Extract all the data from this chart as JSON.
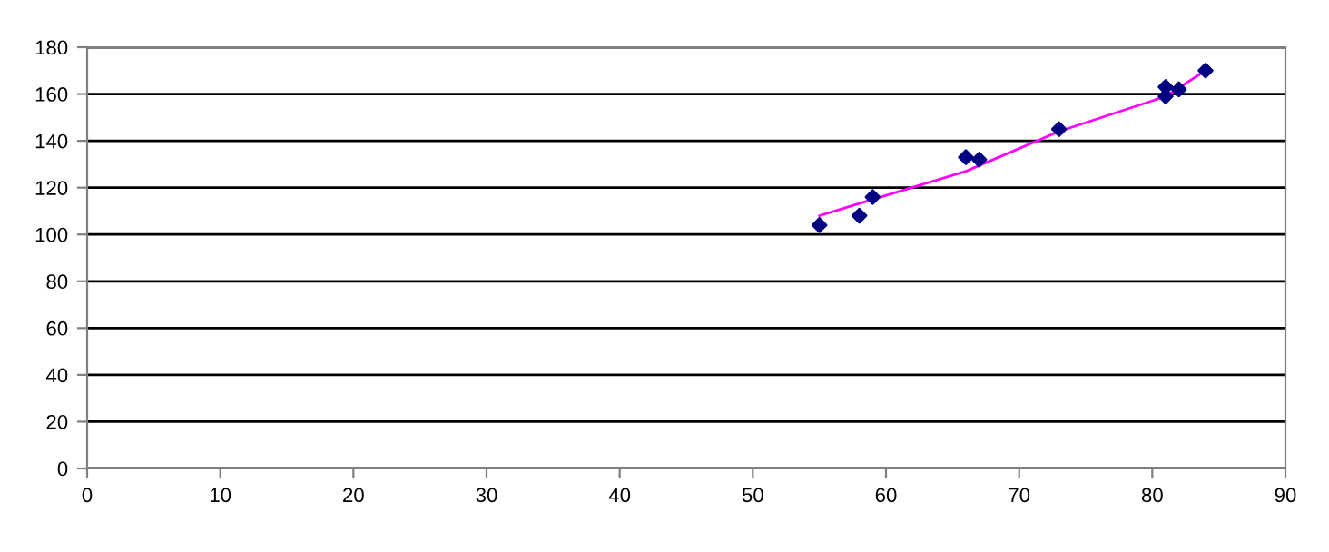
{
  "chart_data": {
    "type": "scatter",
    "xlim": [
      0,
      90
    ],
    "xticks": [
      0,
      10,
      20,
      30,
      40,
      50,
      60,
      70,
      80,
      90
    ],
    "ylim": [
      0,
      180
    ],
    "yticks": [
      0,
      20,
      40,
      60,
      80,
      100,
      120,
      140,
      160,
      180
    ],
    "grid": "y",
    "marker": "diamond",
    "legend": false,
    "series": [
      {
        "color": "#000080",
        "x": [
          55,
          58,
          59,
          66,
          67,
          73,
          81,
          81,
          82,
          84
        ],
        "values": [
          104,
          108,
          116,
          133,
          132,
          145,
          163,
          159,
          162,
          170
        ]
      },
      {
        "type": "line",
        "color": "#ff00ff",
        "marker": "none",
        "line_style": "solid",
        "x": [
          55,
          59,
          66,
          73,
          81,
          84
        ],
        "values": [
          108,
          115,
          127,
          144,
          159,
          170
        ]
      }
    ]
  }
}
